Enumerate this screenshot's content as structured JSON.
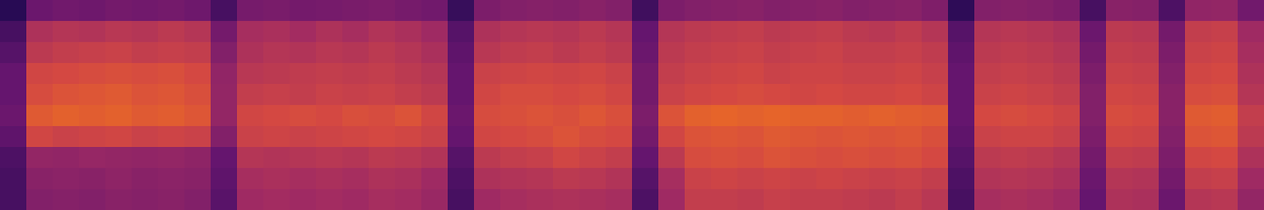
{
  "chart_data": {
    "type": "heatmap",
    "tick_labels": false,
    "color_range": [
      0,
      100
    ],
    "cells": [
      [
        20,
        30,
        35,
        40,
        40,
        42,
        38,
        32,
        30,
        30
      ],
      [
        42,
        64,
        68,
        74,
        76,
        80,
        74,
        56,
        52,
        50
      ],
      [
        44,
        66,
        70,
        75,
        78,
        82,
        72,
        55,
        53,
        51
      ],
      [
        43,
        65,
        71,
        76,
        79,
        81,
        73,
        57,
        52,
        50
      ],
      [
        45,
        67,
        72,
        77,
        80,
        82,
        74,
        56,
        54,
        52
      ],
      [
        44,
        66,
        70,
        76,
        78,
        80,
        72,
        55,
        52,
        51
      ],
      [
        45,
        68,
        71,
        77,
        79,
        81,
        73,
        56,
        53,
        52
      ],
      [
        43,
        66,
        70,
        75,
        77,
        79,
        72,
        54,
        52,
        50
      ],
      [
        30,
        45,
        50,
        55,
        56,
        56,
        50,
        40,
        38,
        36
      ],
      [
        46,
        62,
        64,
        67,
        70,
        74,
        72,
        66,
        62,
        60
      ],
      [
        47,
        63,
        66,
        68,
        71,
        75,
        73,
        65,
        63,
        61
      ],
      [
        45,
        61,
        65,
        69,
        70,
        76,
        72,
        66,
        62,
        60
      ],
      [
        46,
        64,
        67,
        70,
        72,
        75,
        73,
        67,
        63,
        61
      ],
      [
        47,
        62,
        66,
        69,
        71,
        77,
        74,
        66,
        62,
        60
      ],
      [
        48,
        65,
        68,
        70,
        72,
        76,
        75,
        68,
        64,
        62
      ],
      [
        46,
        63,
        66,
        68,
        70,
        78,
        74,
        67,
        63,
        61
      ],
      [
        44,
        60,
        63,
        66,
        68,
        74,
        72,
        65,
        60,
        58
      ],
      [
        25,
        35,
        38,
        40,
        40,
        42,
        40,
        35,
        32,
        30
      ],
      [
        48,
        64,
        67,
        72,
        74,
        76,
        74,
        68,
        64,
        60
      ],
      [
        50,
        66,
        69,
        73,
        76,
        77,
        75,
        70,
        65,
        62
      ],
      [
        51,
        67,
        70,
        74,
        76,
        78,
        76,
        71,
        66,
        63
      ],
      [
        50,
        66,
        68,
        73,
        75,
        77,
        78,
        74,
        68,
        64
      ],
      [
        52,
        68,
        70,
        74,
        76,
        79,
        76,
        72,
        67,
        63
      ],
      [
        50,
        66,
        68,
        72,
        74,
        77,
        75,
        70,
        65,
        62
      ],
      [
        28,
        40,
        42,
        45,
        45,
        48,
        45,
        40,
        35,
        32
      ],
      [
        48,
        66,
        68,
        70,
        72,
        78,
        74,
        68,
        62,
        60
      ],
      [
        50,
        68,
        70,
        72,
        74,
        82,
        78,
        76,
        72,
        70
      ],
      [
        51,
        69,
        71,
        73,
        75,
        83,
        79,
        77,
        73,
        70
      ],
      [
        52,
        70,
        72,
        74,
        76,
        82,
        78,
        76,
        72,
        69
      ],
      [
        50,
        68,
        70,
        72,
        75,
        83,
        80,
        78,
        73,
        71
      ],
      [
        51,
        69,
        71,
        73,
        74,
        82,
        79,
        77,
        72,
        70
      ],
      [
        52,
        70,
        72,
        73,
        75,
        82,
        78,
        76,
        73,
        70
      ],
      [
        50,
        68,
        70,
        72,
        74,
        81,
        79,
        77,
        72,
        69
      ],
      [
        51,
        67,
        70,
        72,
        74,
        82,
        78,
        76,
        71,
        68
      ],
      [
        52,
        69,
        71,
        73,
        75,
        81,
        79,
        77,
        72,
        70
      ],
      [
        49,
        66,
        69,
        71,
        73,
        80,
        77,
        75,
        70,
        67
      ],
      [
        22,
        35,
        38,
        40,
        40,
        40,
        38,
        35,
        32,
        30
      ],
      [
        50,
        66,
        68,
        70,
        72,
        75,
        72,
        68,
        65,
        62
      ],
      [
        51,
        67,
        69,
        71,
        73,
        76,
        73,
        69,
        66,
        63
      ],
      [
        50,
        66,
        68,
        70,
        72,
        75,
        73,
        68,
        65,
        62
      ],
      [
        48,
        64,
        66,
        68,
        70,
        73,
        71,
        66,
        63,
        60
      ],
      [
        30,
        42,
        45,
        48,
        50,
        50,
        48,
        45,
        42,
        40
      ],
      [
        52,
        68,
        70,
        72,
        74,
        76,
        74,
        70,
        66,
        64
      ],
      [
        51,
        67,
        69,
        71,
        73,
        75,
        73,
        69,
        65,
        63
      ],
      [
        32,
        45,
        48,
        50,
        52,
        52,
        50,
        48,
        45,
        42
      ],
      [
        55,
        70,
        72,
        74,
        76,
        80,
        78,
        74,
        70,
        66
      ],
      [
        56,
        71,
        73,
        75,
        77,
        81,
        79,
        75,
        71,
        67
      ],
      [
        44,
        60,
        62,
        64,
        66,
        70,
        68,
        64,
        60,
        56
      ]
    ]
  }
}
